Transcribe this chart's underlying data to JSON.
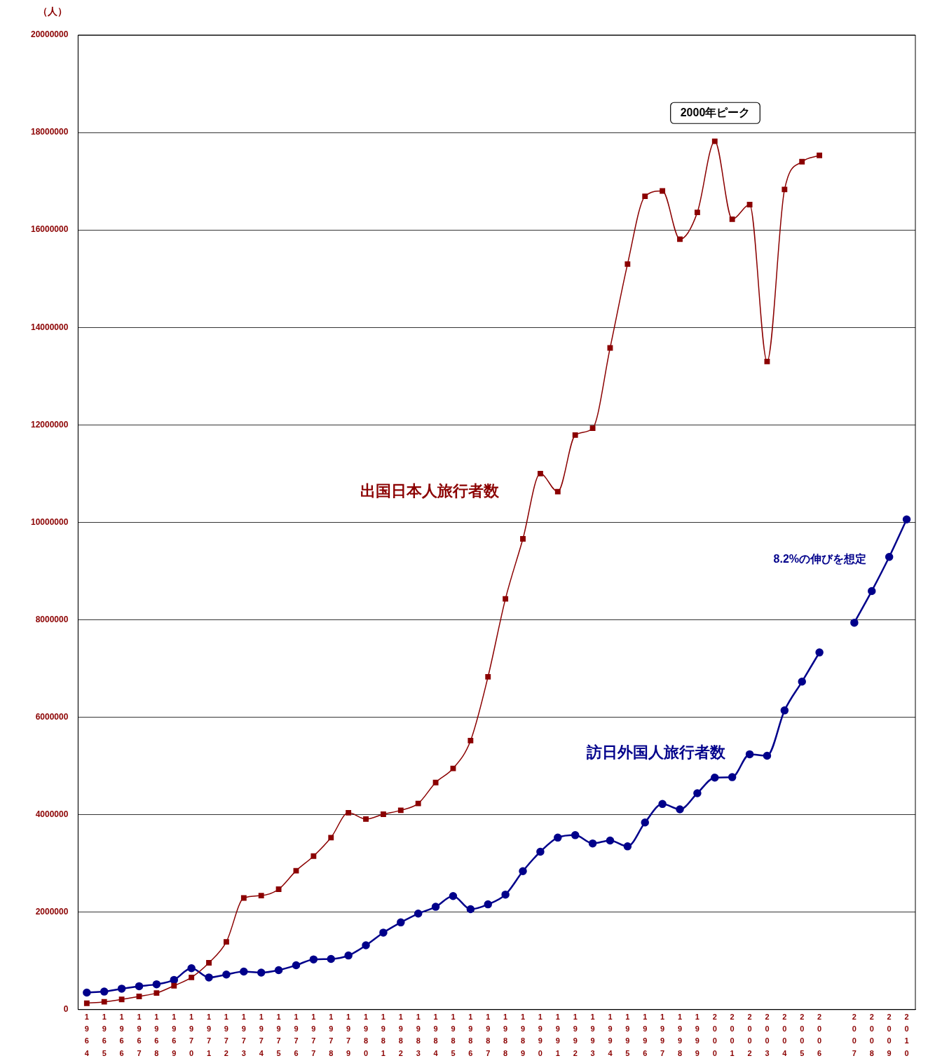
{
  "chart_data": {
    "type": "line",
    "ylabel": "（人）",
    "categories": [
      "1964",
      "1965",
      "1966",
      "1967",
      "1968",
      "1969",
      "1970",
      "1971",
      "1972",
      "1973",
      "1974",
      "1975",
      "1976",
      "1977",
      "1978",
      "1979",
      "1980",
      "1981",
      "1982",
      "1983",
      "1984",
      "1985",
      "1986",
      "1987",
      "1988",
      "1989",
      "1990",
      "1991",
      "1992",
      "1993",
      "1994",
      "1995",
      "1996",
      "1997",
      "1998",
      "1999",
      "2000",
      "2001",
      "2002",
      "2003",
      "2004",
      "2005",
      "2006",
      null,
      "2007",
      "2008",
      "2009",
      "2010"
    ],
    "series": [
      {
        "name": "出国日本人旅行者数",
        "color": "#8b0000",
        "marker": "square",
        "values": [
          130000,
          160000,
          210000,
          270000,
          340000,
          490000,
          660000,
          960000,
          1390000,
          2290000,
          2340000,
          2470000,
          2850000,
          3150000,
          3530000,
          4040000,
          3910000,
          4010000,
          4090000,
          4230000,
          4660000,
          4950000,
          5520000,
          6830000,
          8430000,
          9660000,
          11000000,
          10630000,
          11790000,
          11930000,
          13580000,
          15300000,
          16690000,
          16800000,
          15810000,
          16360000,
          17820000,
          16220000,
          16520000,
          13300000,
          16830000,
          17400000,
          17530000,
          null,
          null,
          null,
          null,
          null
        ]
      },
      {
        "name": "訪日外国人旅行者数",
        "color": "#00008b",
        "marker": "circle",
        "values": [
          350000,
          370000,
          430000,
          480000,
          520000,
          610000,
          850000,
          660000,
          720000,
          780000,
          760000,
          810000,
          910000,
          1030000,
          1040000,
          1110000,
          1320000,
          1580000,
          1790000,
          1970000,
          2110000,
          2330000,
          2060000,
          2160000,
          2360000,
          2840000,
          3240000,
          3530000,
          3580000,
          3410000,
          3470000,
          3350000,
          3840000,
          4220000,
          4110000,
          4440000,
          4760000,
          4770000,
          5240000,
          5210000,
          6140000,
          6730000,
          7330000,
          null,
          7940000,
          8590000,
          9290000,
          10060000
        ]
      }
    ],
    "ylim": [
      0,
      20000000
    ],
    "yticks": [
      0,
      2000000,
      4000000,
      6000000,
      8000000,
      10000000,
      12000000,
      14000000,
      16000000,
      18000000,
      20000000
    ],
    "grid": "y",
    "legend": false,
    "line_style": "solid",
    "annotations": [
      "2000年ピーク",
      "8.2%の伸びを想定"
    ]
  }
}
